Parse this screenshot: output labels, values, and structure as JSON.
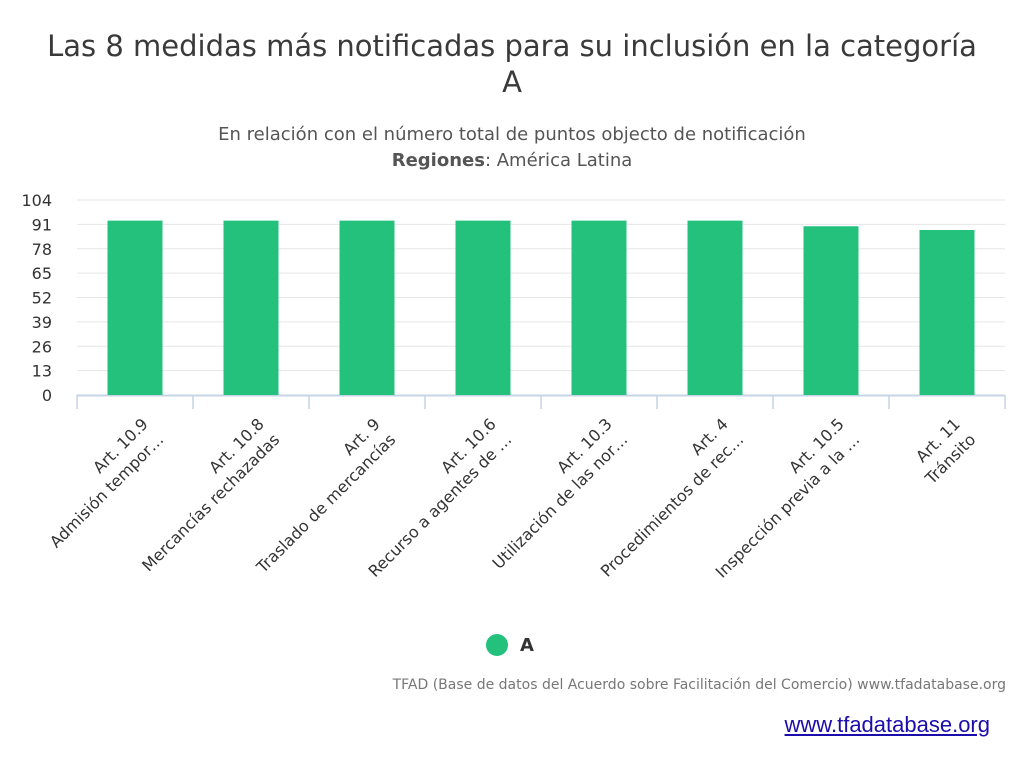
{
  "header": {
    "title": "Las 8 medidas más notificadas para su inclusión en la categoría A",
    "subtitle": "En relación con el número total de puntos objecto de notificación",
    "regions_label": "Regiones",
    "regions_value": ": América Latina"
  },
  "colors": {
    "bar": "#23c17c",
    "grid": "#e6e6e6",
    "axis": "#c6d4e6",
    "text": "#333333"
  },
  "chart_data": {
    "type": "bar",
    "categories": [
      [
        "Art. 10.9",
        "Admisión tempor…"
      ],
      [
        "Art. 10.8",
        "Mercancías rechazadas"
      ],
      [
        "Art. 9",
        "Traslado de mercancías"
      ],
      [
        "Art. 10.6",
        "Recurso a agentes de …"
      ],
      [
        "Art. 10.3",
        "Utilización de las nor…"
      ],
      [
        "Art. 4",
        "Procedimientos de rec…"
      ],
      [
        "Art. 10.5",
        "Inspección previa a la …"
      ],
      [
        "Art. 11",
        "Tránsito"
      ]
    ],
    "series": [
      {
        "name": "A",
        "values": [
          93,
          93,
          93,
          93,
          93,
          93,
          90,
          88
        ]
      }
    ],
    "yticks": [
      0,
      13,
      26,
      39,
      52,
      65,
      78,
      91,
      104
    ],
    "ylim": [
      0,
      104
    ],
    "grid": true,
    "legend": "bottom-center"
  },
  "footer": {
    "credit": "TFAD (Base de datos del Acuerdo sobre Facilitación del Comercio) www.tfadatabase.org",
    "link": "www.tfadatabase.org"
  }
}
